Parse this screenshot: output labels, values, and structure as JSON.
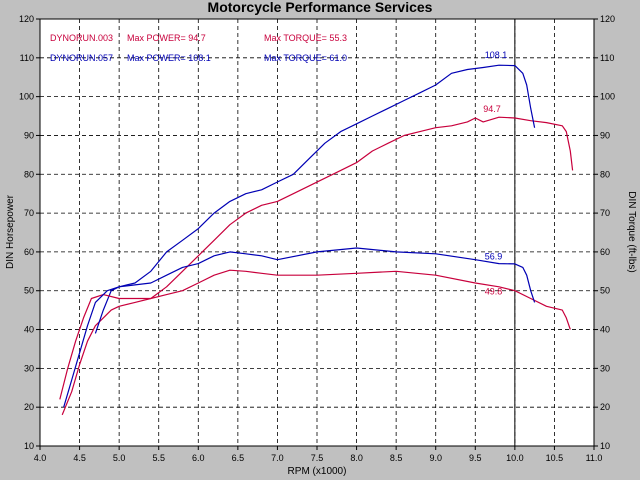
{
  "chart_data": {
    "type": "line",
    "title": "Motorcycle Performance Services",
    "xlabel": "RPM (x1000)",
    "ylabel_left": "DIN Horsepower",
    "ylabel_right": "DIN Torque (ft-lbs)",
    "xlim": [
      4.0,
      11.0
    ],
    "ylim": [
      10,
      120
    ],
    "x_ticks": [
      "4.0",
      "4.5",
      "5.0",
      "5.5",
      "6.0",
      "6.5",
      "7.0",
      "7.5",
      "8.0",
      "8.5",
      "9.0",
      "9.5",
      "10.0",
      "10.5",
      "11.0"
    ],
    "y_ticks": [
      "10",
      "20",
      "30",
      "40",
      "50",
      "60",
      "70",
      "80",
      "90",
      "100",
      "110",
      "120"
    ],
    "grid": true,
    "vline_x": 10.0,
    "legend": [
      {
        "run": "DYNORUN.003",
        "power": "Max POWER= 94.7",
        "torque": "Max TORQUE= 55.3",
        "color": "#c8003c"
      },
      {
        "run": "DYNORUN.057",
        "power": "Max POWER= 108.1",
        "torque": "Max TORQUE= 61.0",
        "color": "#0000b4"
      }
    ],
    "series": [
      {
        "color": "#c8003c",
        "kind": "power",
        "x": [
          4.28,
          4.4,
          4.5,
          4.6,
          4.7,
          4.8,
          4.9,
          5.0,
          5.2,
          5.4,
          5.6,
          5.8,
          6.0,
          6.2,
          6.4,
          6.6,
          6.8,
          7.0,
          7.2,
          7.4,
          7.6,
          7.8,
          8.0,
          8.2,
          8.4,
          8.6,
          8.8,
          9.0,
          9.2,
          9.4,
          9.5,
          9.6,
          9.8,
          10.0,
          10.2,
          10.4,
          10.6,
          10.65,
          10.7,
          10.73
        ],
        "values": [
          18,
          24,
          31,
          37,
          41,
          43,
          45,
          46,
          47,
          48,
          51,
          55,
          59,
          63,
          67,
          70,
          72,
          73,
          75,
          77,
          79,
          81,
          83,
          86,
          88,
          90,
          91,
          92,
          92.5,
          93.5,
          94.5,
          93.5,
          94.7,
          94.5,
          93.8,
          93.3,
          92.5,
          91,
          86,
          81
        ]
      },
      {
        "color": "#0000b4",
        "kind": "power",
        "x": [
          4.7,
          4.8,
          4.9,
          5.0,
          5.2,
          5.4,
          5.6,
          5.8,
          6.0,
          6.2,
          6.4,
          6.6,
          6.8,
          7.0,
          7.2,
          7.4,
          7.6,
          7.8,
          8.0,
          8.2,
          8.4,
          8.6,
          8.8,
          9.0,
          9.2,
          9.4,
          9.6,
          9.8,
          10.0,
          10.1,
          10.15,
          10.2,
          10.25
        ],
        "values": [
          39,
          45,
          50,
          51,
          52,
          55,
          60,
          63,
          66,
          70,
          73,
          75,
          76,
          78,
          80,
          84,
          88,
          91,
          93,
          95,
          97,
          99,
          101,
          103,
          106,
          107,
          107.5,
          108.1,
          108,
          106,
          103,
          97,
          92
        ]
      },
      {
        "color": "#c8003c",
        "kind": "torque",
        "x": [
          4.25,
          4.35,
          4.45,
          4.55,
          4.65,
          4.8,
          5.0,
          5.2,
          5.4,
          5.6,
          5.8,
          6.0,
          6.2,
          6.4,
          6.6,
          6.8,
          7.0,
          7.5,
          8.0,
          8.5,
          9.0,
          9.5,
          9.8,
          10.0,
          10.2,
          10.4,
          10.6,
          10.65,
          10.7
        ],
        "values": [
          22,
          30,
          37,
          43,
          48,
          49,
          48,
          48,
          48,
          49,
          50,
          52,
          54,
          55.3,
          55,
          54.5,
          54,
          54,
          54.5,
          55,
          54,
          52,
          51,
          50,
          48,
          46,
          45,
          43,
          40
        ]
      },
      {
        "color": "#0000b4",
        "kind": "torque",
        "x": [
          4.3,
          4.4,
          4.5,
          4.6,
          4.7,
          4.85,
          5.0,
          5.2,
          5.4,
          5.6,
          5.8,
          6.0,
          6.2,
          6.4,
          6.6,
          6.8,
          7.0,
          7.5,
          8.0,
          8.5,
          9.0,
          9.5,
          9.8,
          10.0,
          10.1,
          10.15,
          10.2,
          10.25
        ],
        "values": [
          20,
          27,
          34,
          41,
          47,
          50,
          51,
          51.5,
          52,
          54,
          56,
          57,
          59,
          60,
          59.5,
          59,
          58,
          60,
          61,
          60,
          59.5,
          58,
          57,
          56.9,
          56,
          54,
          50,
          47
        ]
      }
    ],
    "annotations": [
      {
        "label": "108.1",
        "x": 9.62,
        "y": 110,
        "color": "#0000b4"
      },
      {
        "label": "94.7",
        "x": 9.6,
        "y": 96,
        "color": "#c8003c"
      },
      {
        "label": "56.9",
        "x": 9.62,
        "y": 58,
        "color": "#0000b4"
      },
      {
        "label": "49.8",
        "x": 9.62,
        "y": 49,
        "color": "#c8003c"
      }
    ]
  }
}
